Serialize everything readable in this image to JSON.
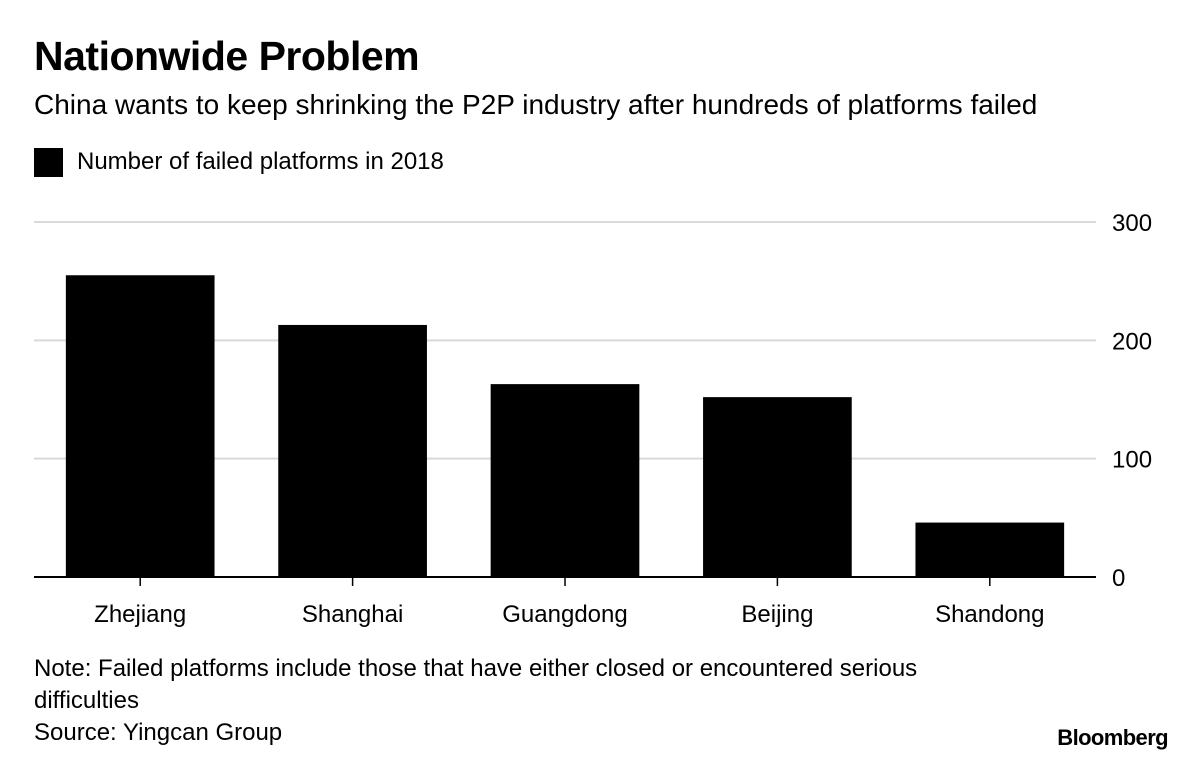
{
  "title": "Nationwide Problem",
  "subtitle": "China wants to keep shrinking the P2P industry after hundreds of platforms failed",
  "legend": {
    "label": "Number of failed platforms in 2018",
    "color": "#000000"
  },
  "note": "Note: Failed platforms include those that have either closed or encountered serious difficulties",
  "source": "Source: Yingcan Group",
  "brand": "Bloomberg",
  "chart_data": {
    "type": "bar",
    "categories": [
      "Zhejiang",
      "Shanghai",
      "Guangdong",
      "Beijing",
      "Shandong"
    ],
    "series": [
      {
        "name": "Number of failed platforms in 2018",
        "values": [
          255,
          213,
          163,
          152,
          46
        ],
        "color": "#000000"
      }
    ],
    "ylim": [
      0,
      300
    ],
    "yticks": [
      0,
      100,
      200,
      300
    ],
    "y_axis_side": "right",
    "grid": true,
    "legend_position": "top-left"
  }
}
